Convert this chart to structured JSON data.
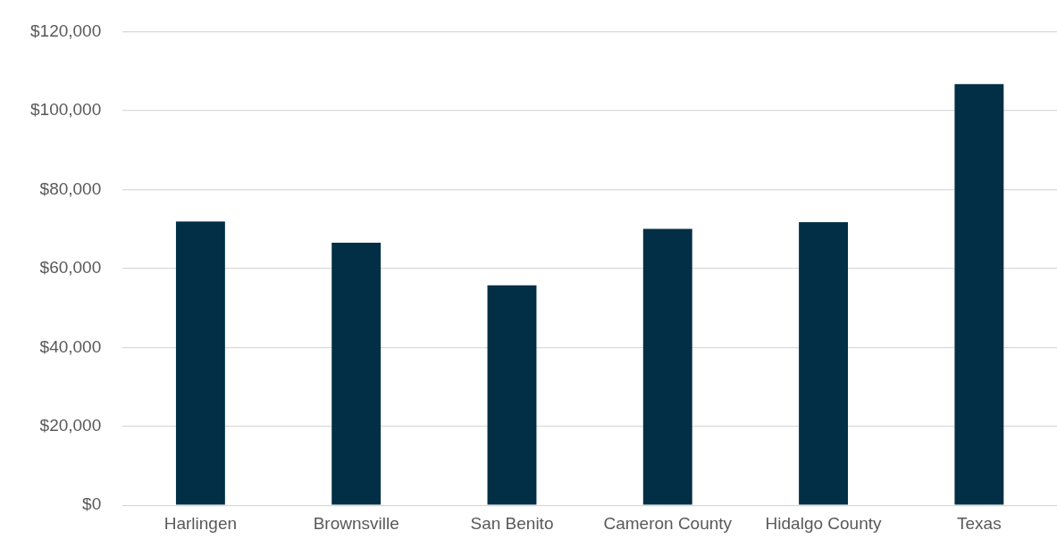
{
  "chart_data": {
    "type": "bar",
    "categories": [
      "Harlingen",
      "Brownsville",
      "San Benito",
      "Cameron County",
      "Hidalgo County",
      "Texas"
    ],
    "values": [
      71900,
      66500,
      55700,
      70000,
      71700,
      106700
    ],
    "color": "#022f45",
    "ylim": [
      0,
      120000
    ],
    "yticks": [
      {
        "value": 0,
        "label": "$0"
      },
      {
        "value": 20000,
        "label": "$20,000"
      },
      {
        "value": 40000,
        "label": "$40,000"
      },
      {
        "value": 60000,
        "label": "$60,000"
      },
      {
        "value": 80000,
        "label": "$80,000"
      },
      {
        "value": 100000,
        "label": "$100,000"
      },
      {
        "value": 120000,
        "label": "$120,000"
      }
    ],
    "grid": "y"
  }
}
